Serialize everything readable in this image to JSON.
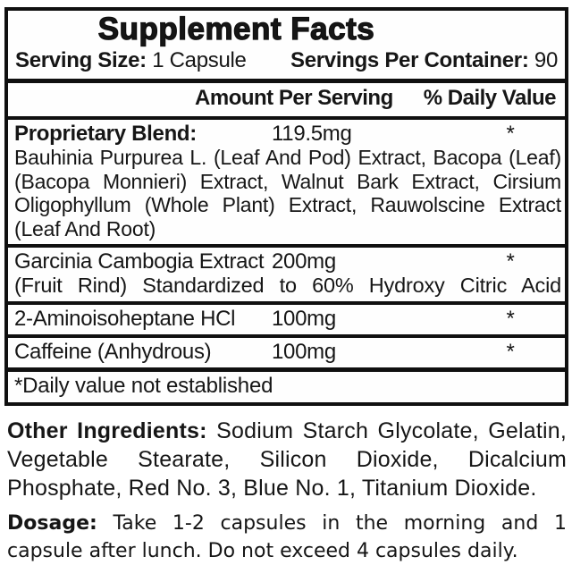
{
  "panel": {
    "title": "Supplement Facts",
    "serving": {
      "size_label": "Serving Size:",
      "size_value": "1 Capsule",
      "per_container_label": "Servings Per Container:",
      "per_container_value": "90"
    },
    "header": {
      "amount": "Amount Per Serving",
      "daily_value": "% Daily Value"
    },
    "rows": [
      {
        "name": "Proprietary Blend:",
        "amount": "119.5mg",
        "dv": "*",
        "description": "Bauhinia Purpurea L. (Leaf And Pod) Extract, Bacopa (Leaf) (Bacopa Monnieri) Extract, Walnut Bark Extract, Cirsium Oligophyllum (Whole Plant) Extract, Rauwolscine Extract (Leaf And Root)"
      },
      {
        "name": "Garcinia Cambogia Extract",
        "amount": "200mg",
        "dv": "*",
        "description": "(Fruit Rind) Standardized to 60% Hydroxy Citric Acid"
      },
      {
        "name": "2-Aminoisoheptane HCl",
        "amount": "100mg",
        "dv": "*"
      },
      {
        "name": "Caffeine (Anhydrous)",
        "amount": "100mg",
        "dv": "*"
      }
    ],
    "footnote": "*Daily value not established"
  },
  "other_ingredients": {
    "label": "Other Ingredients:",
    "text": "Sodium Starch Glycolate, Gelatin, Vegetable Stearate, Silicon Dioxide, Dicalcium Phosphate, Red No. 3, Blue No. 1, Titanium Dioxide."
  },
  "dosage": {
    "label": "Dosage:",
    "text": "Take 1-2 capsules in the morning and 1 capsule after lunch. Do not exceed 4 capsules daily."
  },
  "colors": {
    "border": "#101010",
    "text": "#161616",
    "background": "#ffffff"
  }
}
